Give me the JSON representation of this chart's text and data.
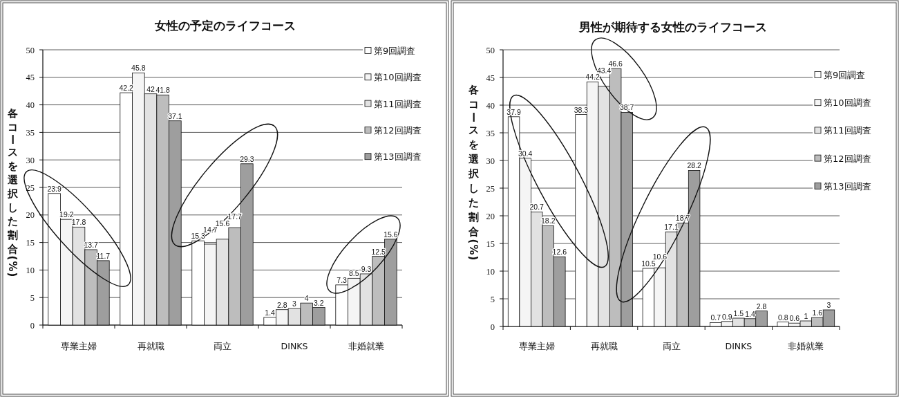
{
  "chart_data": [
    {
      "type": "bar",
      "title": "女性の予定のライフコース",
      "ylabel": "各コースを選択した割合(%)",
      "categories": [
        "専業主婦",
        "再就職",
        "両立",
        "DINKS",
        "非婚就業"
      ],
      "series": [
        {
          "name": "第9回調査",
          "color": "#ffffff",
          "values": [
            23.9,
            42.2,
            15.3,
            1.4,
            7.3
          ]
        },
        {
          "name": "第10回調査",
          "color": "#f5f5f5",
          "values": [
            19.2,
            45.8,
            14.7,
            2.8,
            8.5
          ]
        },
        {
          "name": "第11回調査",
          "color": "#e2e2e2",
          "values": [
            17.8,
            42,
            15.6,
            3,
            9.3
          ]
        },
        {
          "name": "第12回調査",
          "color": "#bdbdbd",
          "values": [
            13.7,
            41.8,
            17.7,
            4,
            12.5
          ]
        },
        {
          "name": "第13回調査",
          "color": "#9e9e9e",
          "values": [
            11.7,
            37.1,
            29.3,
            3.2,
            15.6
          ]
        }
      ],
      "ylim": [
        0,
        50
      ],
      "yticks": [
        0,
        5,
        10,
        15,
        20,
        25,
        30,
        35,
        40,
        45,
        50
      ],
      "grid": "y",
      "legend": "top right",
      "data_labels": true
    },
    {
      "type": "bar",
      "title": "男性が期待する女性のライフコース",
      "ylabel": "各コースを選択した割合(%)",
      "categories": [
        "専業主婦",
        "再就職",
        "両立",
        "DINKS",
        "非婚就業"
      ],
      "series": [
        {
          "name": "第9回調査",
          "color": "#ffffff",
          "values": [
            37.9,
            38.3,
            10.5,
            0.7,
            0.8
          ]
        },
        {
          "name": "第10回調査",
          "color": "#f5f5f5",
          "values": [
            30.4,
            44.2,
            10.6,
            0.9,
            0.6
          ]
        },
        {
          "name": "第11回調査",
          "color": "#e2e2e2",
          "values": [
            20.7,
            43.4,
            17.1,
            1.5,
            1
          ]
        },
        {
          "name": "第12回調査",
          "color": "#bdbdbd",
          "values": [
            18.2,
            46.6,
            18.7,
            1.4,
            1.6
          ]
        },
        {
          "name": "第13回調査",
          "color": "#9e9e9e",
          "values": [
            12.6,
            38.7,
            28.2,
            2.8,
            3
          ]
        }
      ],
      "ylim": [
        0,
        50
      ],
      "yticks": [
        0,
        5,
        10,
        15,
        20,
        25,
        30,
        35,
        40,
        45,
        50
      ],
      "grid": "y",
      "legend": "top right",
      "data_labels": true
    }
  ]
}
